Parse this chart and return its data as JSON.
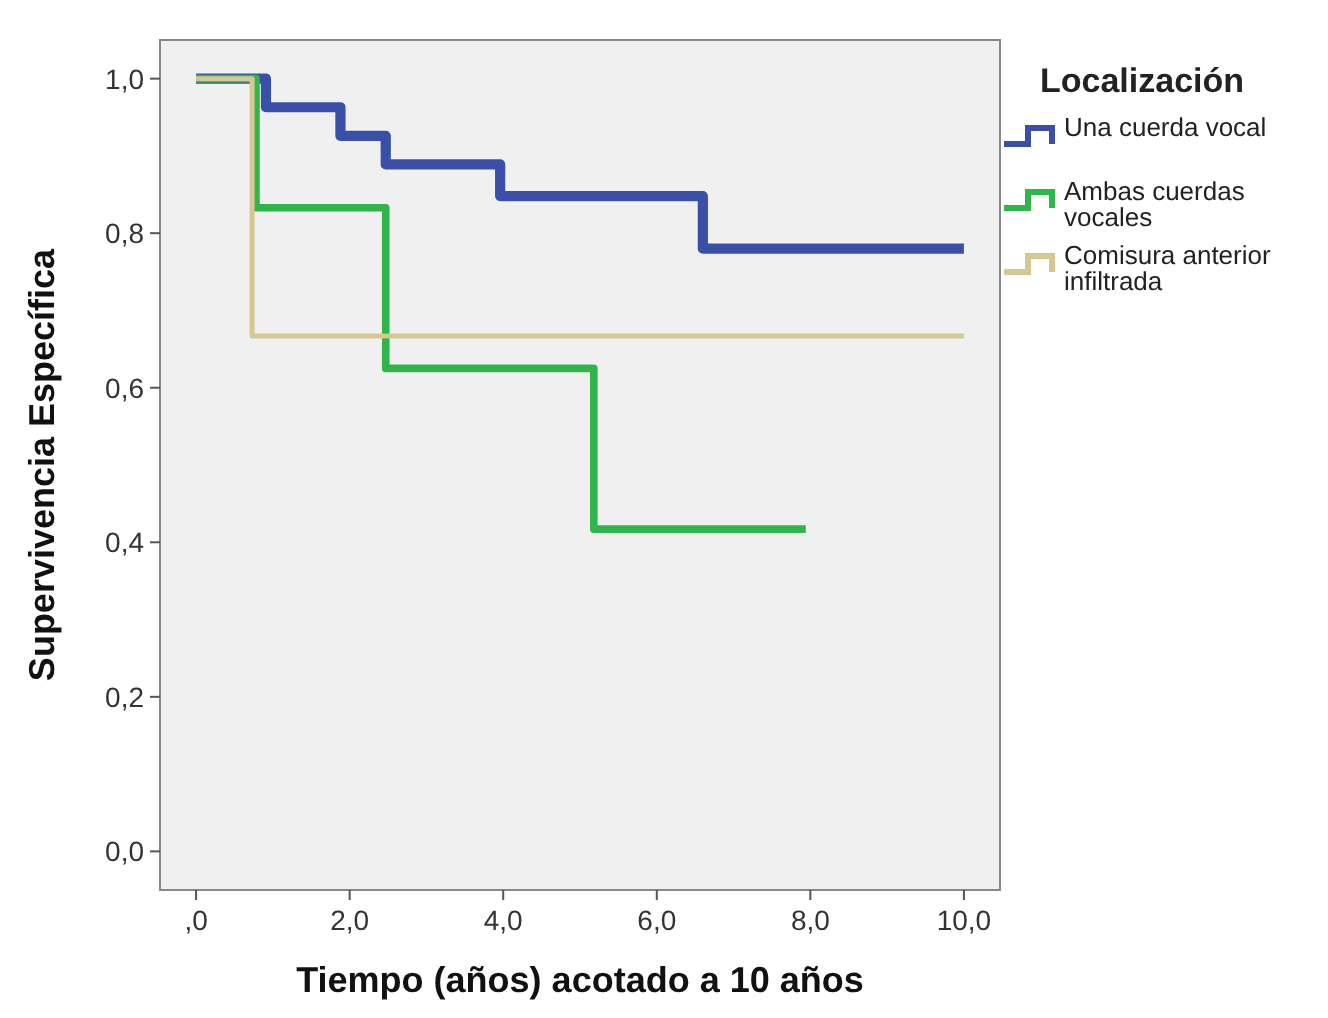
{
  "chart_data": {
    "type": "step",
    "xlabel": "Tiempo (años) acotado a 10 años",
    "ylabel": "Supervivencia Específica",
    "legend_title": "Localización",
    "legend": "right",
    "grid": false,
    "xlim": [
      -0.47,
      10.47
    ],
    "ylim": [
      -0.05,
      1.05
    ],
    "xticks": [
      {
        "value": 0,
        "label": ",0"
      },
      {
        "value": 2,
        "label": "2,0"
      },
      {
        "value": 4,
        "label": "4,0"
      },
      {
        "value": 6,
        "label": "6,0"
      },
      {
        "value": 8,
        "label": "8,0"
      },
      {
        "value": 10,
        "label": "10,0"
      }
    ],
    "yticks": [
      {
        "value": 0,
        "label": "0,0"
      },
      {
        "value": 0.2,
        "label": "0,2"
      },
      {
        "value": 0.4,
        "label": "0,4"
      },
      {
        "value": 0.6,
        "label": "0,6"
      },
      {
        "value": 0.8,
        "label": "0,8"
      },
      {
        "value": 1,
        "label": "1,0"
      }
    ],
    "series": [
      {
        "name": "Una cuerda vocal",
        "color": "#3a50a8",
        "x": [
          0,
          0.91,
          1.88,
          2.47,
          3.96,
          6.6,
          10
        ],
        "values": [
          1,
          0.963,
          0.926,
          0.889,
          0.848,
          0.78,
          0.78
        ]
      },
      {
        "name": "Ambas cuerdas vocales",
        "color": "#2fb54a",
        "x": [
          0,
          0.78,
          2.47,
          5.18,
          7.94
        ],
        "values": [
          1,
          0.833,
          0.625,
          0.417,
          0.417
        ]
      },
      {
        "name": "Comisura anterior infiltrada",
        "color": "#d4c890",
        "x": [
          0,
          0.73,
          10
        ],
        "values": [
          1,
          0.667,
          0.667
        ]
      }
    ]
  }
}
